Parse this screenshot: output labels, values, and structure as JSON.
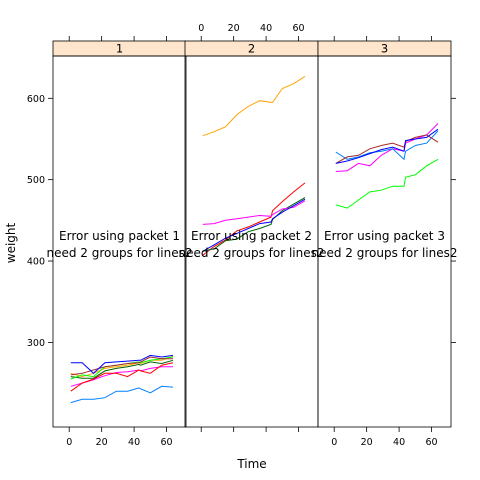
{
  "chart_data": {
    "type": "line",
    "xlabel": "Time",
    "ylabel": "weight",
    "xlim": [
      -10,
      72
    ],
    "ylim": [
      196,
      652
    ],
    "x_ticks": [
      0,
      20,
      40,
      60
    ],
    "y_ticks": [
      300,
      400,
      500,
      600
    ],
    "x_tick_labels": [
      "0",
      "20",
      "40",
      "60"
    ],
    "y_tick_labels": [
      "300",
      "400",
      "500",
      "600"
    ],
    "colors": [
      "#0080ff",
      "#ff00ff",
      "#006400",
      "#ff0000",
      "#ffa500",
      "#00ff00",
      "#a52a2a",
      "#0000ff"
    ],
    "panels": [
      {
        "strip": "1",
        "message": [
          "Error using packet 1",
          "need 2 groups for lines2"
        ],
        "series": [
          {
            "color": "#0080ff",
            "x": [
              1,
              8,
              15,
              22,
              29,
              36,
              43,
              44,
              50,
              57,
              64
            ],
            "y": [
              226,
              230,
              230,
              232,
              240,
              240,
              244,
              243,
              238,
              246,
              245
            ]
          },
          {
            "color": "#ff00ff",
            "x": [
              1,
              8,
              15,
              22,
              29,
              36,
              43,
              44,
              50,
              57,
              64
            ],
            "y": [
              246,
              250,
              254,
              259,
              263,
              264,
              266,
              265,
              268,
              270,
              270
            ]
          },
          {
            "color": "#006400",
            "x": [
              1,
              8,
              15,
              22,
              29,
              36,
              43,
              44,
              50,
              57,
              64
            ],
            "y": [
              258,
              256,
              256,
              265,
              268,
              270,
              273,
              272,
              276,
              274,
              278
            ]
          },
          {
            "color": "#ff0000",
            "x": [
              1,
              8,
              15,
              22,
              29,
              36,
              43,
              44,
              50,
              57,
              64
            ],
            "y": [
              240,
              250,
              255,
              262,
              262,
              258,
              266,
              265,
              262,
              272,
              275
            ]
          },
          {
            "color": "#ffa500",
            "x": [
              1,
              8,
              15,
              22,
              29,
              36,
              43,
              44,
              50,
              57,
              64
            ],
            "y": [
              262,
              258,
              262,
              268,
              270,
              272,
              275,
              274,
              278,
              278,
              283
            ]
          },
          {
            "color": "#00ff00",
            "x": [
              1,
              8,
              15,
              22,
              29,
              36,
              43,
              44,
              50,
              57,
              64
            ],
            "y": [
              255,
              260,
              258,
              270,
              272,
              274,
              276,
              275,
              278,
              280,
              282
            ]
          },
          {
            "color": "#a52a2a",
            "x": [
              1,
              8,
              15,
              22,
              29,
              36,
              43,
              44,
              50,
              57,
              64
            ],
            "y": [
              260,
              262,
              266,
              270,
              272,
              274,
              275,
              276,
              282,
              280,
              280
            ]
          },
          {
            "color": "#0000ff",
            "x": [
              1,
              8,
              15,
              22,
              29,
              36,
              43,
              44,
              50,
              57,
              64
            ],
            "y": [
              275,
              275,
              262,
              275,
              276,
              277,
              278,
              278,
              284,
              282,
              284
            ]
          }
        ]
      },
      {
        "strip": "2",
        "message": [
          "Error using packet 2",
          "need 2 groups for lines2"
        ],
        "series": [
          {
            "color": "#ffa500",
            "x": [
              1,
              8,
              15,
              22,
              29,
              36,
              43,
              44,
              50,
              57,
              64
            ],
            "y": [
              554,
              559,
              565,
              580,
              590,
              597,
              595,
              595,
              612,
              618,
              627
            ]
          },
          {
            "color": "#ff0000",
            "x": [
              1,
              8,
              15,
              22,
              29,
              36,
              43,
              44,
              50,
              57,
              64
            ],
            "y": [
              407,
              418,
              426,
              437,
              442,
              448,
              454,
              462,
              473,
              485,
              496
            ]
          },
          {
            "color": "#006400",
            "x": [
              1,
              8,
              15,
              22,
              29,
              36,
              43,
              44,
              50,
              57,
              64
            ],
            "y": [
              412,
              415,
              425,
              427,
              436,
              440,
              445,
              451,
              462,
              470,
              478
            ]
          },
          {
            "color": "#ff00ff",
            "x": [
              1,
              8,
              15,
              22,
              29,
              36,
              43,
              44,
              50,
              57,
              64
            ],
            "y": [
              445,
              446,
              450,
              452,
              454,
              456,
              455,
              457,
              464,
              466,
              474
            ]
          },
          {
            "color": "#0000ff",
            "x": [
              1,
              8,
              15,
              22,
              29,
              36,
              43,
              44,
              50,
              57,
              64
            ],
            "y": [
              412,
              420,
              428,
              434,
              440,
              446,
              448,
              452,
              460,
              468,
              476
            ]
          }
        ]
      },
      {
        "strip": "3",
        "message": [
          "Error using packet 3",
          "need 2 groups for lines2"
        ],
        "series": [
          {
            "color": "#00ff00",
            "x": [
              1,
              8,
              15,
              22,
              29,
              36,
              43,
              44,
              50,
              57,
              64
            ],
            "y": [
              469,
              465,
              475,
              485,
              487,
              492,
              492,
              503,
              506,
              517,
              525
            ]
          },
          {
            "color": "#ff00ff",
            "x": [
              1,
              8,
              15,
              22,
              29,
              36,
              43,
              44,
              50,
              57,
              64
            ],
            "y": [
              510,
              511,
              520,
              517,
              530,
              538,
              535,
              545,
              550,
              555,
              569
            ]
          },
          {
            "color": "#0080ff",
            "x": [
              1,
              8,
              15,
              22,
              29,
              36,
              43,
              44,
              50,
              57,
              64
            ],
            "y": [
              534,
              525,
              528,
              533,
              535,
              538,
              525,
              535,
              542,
              545,
              560
            ]
          },
          {
            "color": "#a52a2a",
            "x": [
              1,
              8,
              15,
              22,
              29,
              36,
              43,
              44,
              50,
              57,
              64
            ],
            "y": [
              520,
              528,
              530,
              538,
              542,
              545,
              540,
              547,
              552,
              555,
              546
            ]
          },
          {
            "color": "#0000ff",
            "x": [
              1,
              8,
              15,
              22,
              29,
              36,
              43,
              44,
              50,
              57,
              64
            ],
            "y": [
              520,
              523,
              527,
              532,
              537,
              540,
              535,
              548,
              550,
              552,
              562
            ]
          }
        ]
      }
    ]
  }
}
